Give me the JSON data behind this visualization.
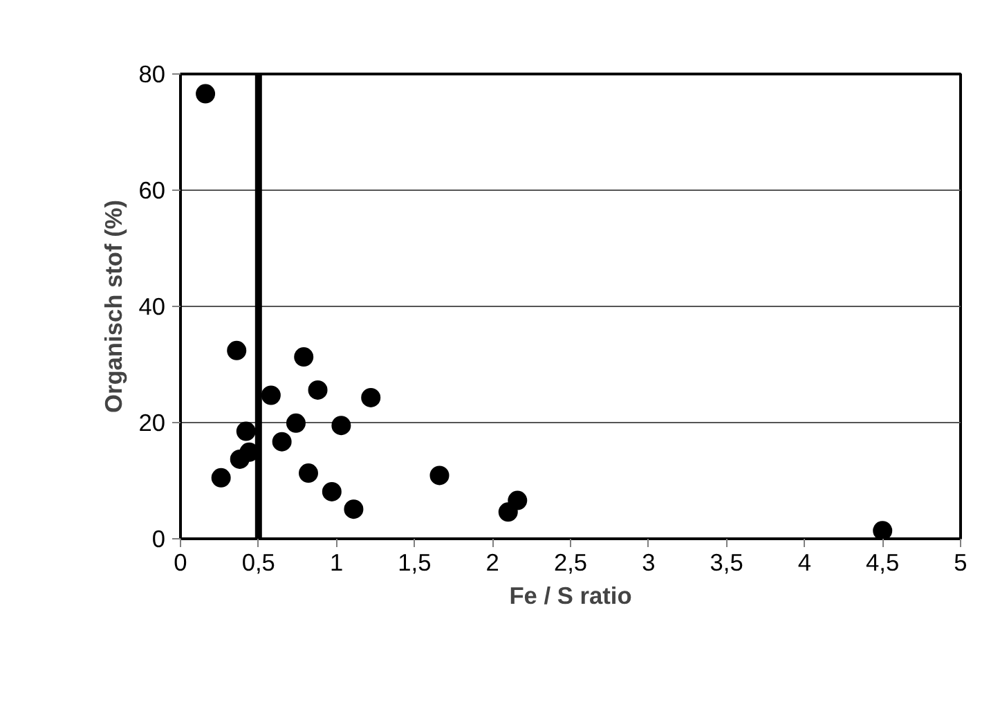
{
  "chart_data": {
    "type": "scatter",
    "xlabel": "Fe / S ratio",
    "ylabel": "Organisch stof (%)",
    "x": [
      0.16,
      0.36,
      0.79,
      0.58,
      0.88,
      1.22,
      0.42,
      0.74,
      1.03,
      0.65,
      0.44,
      0.38,
      0.26,
      0.82,
      0.97,
      1.11,
      1.66,
      2.1,
      2.16,
      4.5
    ],
    "values": [
      76.6,
      32.4,
      31.3,
      24.7,
      25.6,
      24.3,
      18.5,
      19.9,
      19.5,
      16.7,
      14.9,
      13.7,
      10.5,
      11.3,
      8.1,
      5.1,
      10.9,
      4.6,
      6.6,
      1.4
    ],
    "color": "#000000",
    "marker": "circle",
    "xlim": [
      0,
      5
    ],
    "ylim": [
      0,
      80
    ],
    "xticks": [
      0,
      {
        "value": 0.5,
        "label": "0,5"
      },
      1,
      {
        "value": 1.5,
        "label": "1,5"
      },
      2,
      {
        "value": 2.5,
        "label": "2,5"
      },
      3,
      {
        "value": 3.5,
        "label": "3,5"
      },
      4,
      {
        "value": 4.5,
        "label": "4,5"
      },
      5
    ],
    "yticks": [
      0,
      20,
      40,
      60,
      80
    ],
    "grid": "y",
    "ref_lines": [
      {
        "axis": "x",
        "value": 0.5,
        "color": "#000000",
        "line_style": "solid"
      }
    ]
  }
}
